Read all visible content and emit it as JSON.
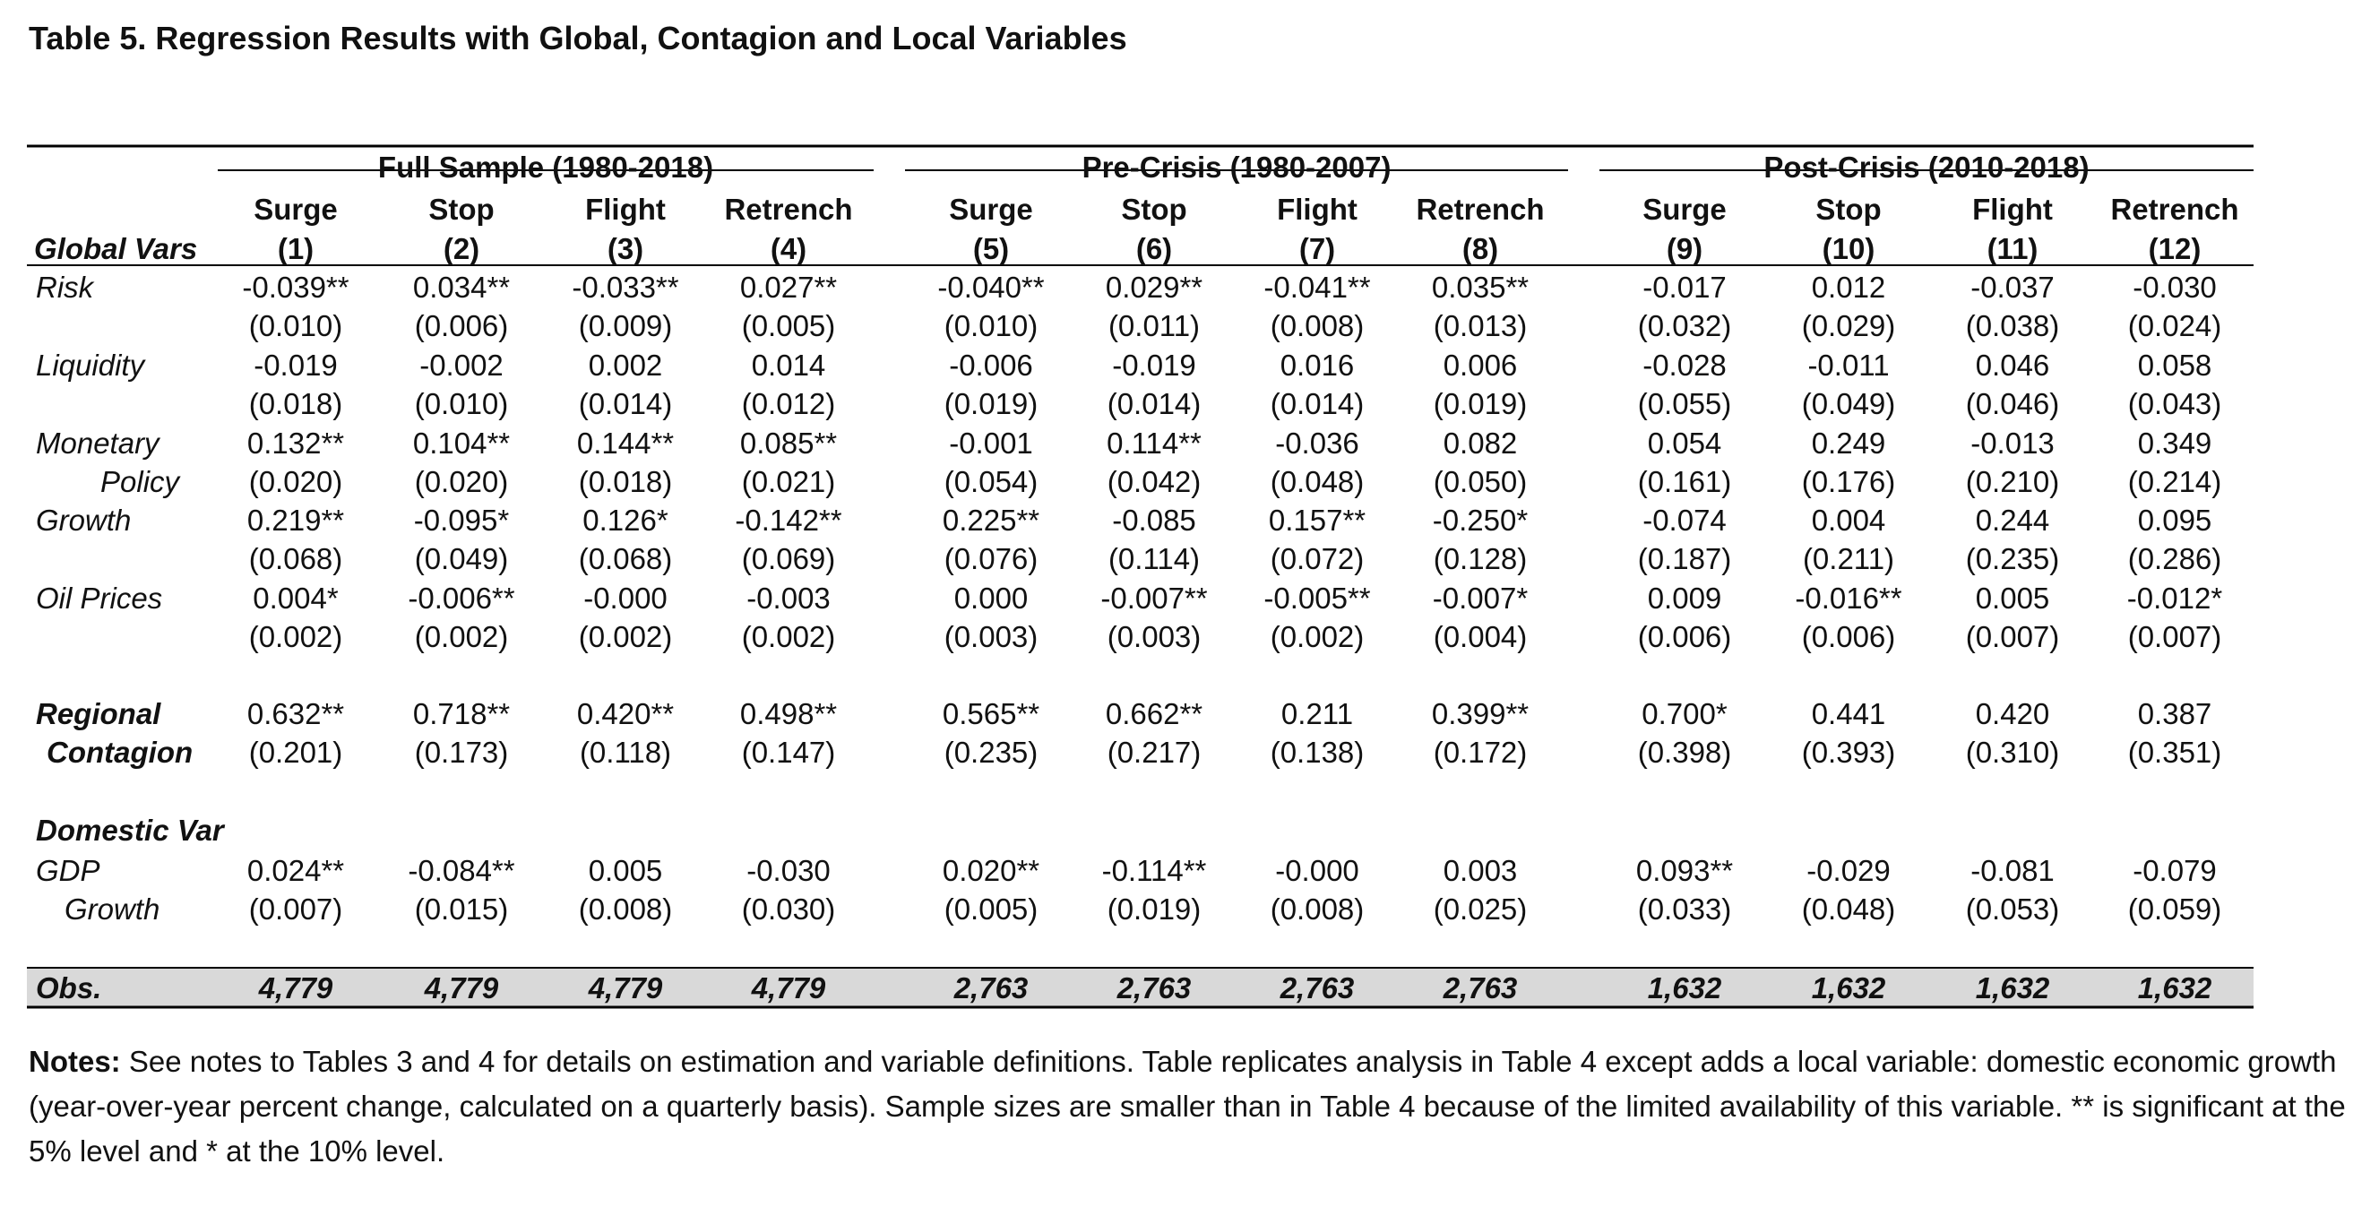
{
  "title": "Table 5. Regression Results with Global, Contagion and Local Variables",
  "groups": [
    "Full Sample (1980-2018)",
    "Pre-Crisis (1980-2007)",
    "Post-Crisis (2010-2018)"
  ],
  "columns": [
    {
      "name": "Surge",
      "num": "(1)"
    },
    {
      "name": "Stop",
      "num": "(2)"
    },
    {
      "name": "Flight",
      "num": "(3)"
    },
    {
      "name": "Retrench",
      "num": "(4)"
    },
    {
      "name": "Surge",
      "num": "(5)"
    },
    {
      "name": "Stop",
      "num": "(6)"
    },
    {
      "name": "Flight",
      "num": "(7)"
    },
    {
      "name": "Retrench",
      "num": "(8)"
    },
    {
      "name": "Surge",
      "num": "(9)"
    },
    {
      "name": "Stop",
      "num": "(10)"
    },
    {
      "name": "Flight",
      "num": "(11)"
    },
    {
      "name": "Retrench",
      "num": "(12)"
    }
  ],
  "header_label": "Global Vars",
  "rows": [
    {
      "label": [
        "Risk",
        ""
      ],
      "style": "italic",
      "coef": [
        "-0.039**",
        "0.034**",
        "-0.033**",
        "0.027**",
        "-0.040**",
        "0.029**",
        "-0.041**",
        "0.035**",
        "-0.017",
        "0.012",
        "-0.037",
        "-0.030"
      ],
      "se": [
        "(0.010)",
        "(0.006)",
        "(0.009)",
        "(0.005)",
        "(0.010)",
        "(0.011)",
        "(0.008)",
        "(0.013)",
        "(0.032)",
        "(0.029)",
        "(0.038)",
        "(0.024)"
      ]
    },
    {
      "label": [
        "Liquidity",
        ""
      ],
      "style": "italic",
      "coef": [
        "-0.019",
        "-0.002",
        "0.002",
        "0.014",
        "-0.006",
        "-0.019",
        "0.016",
        "0.006",
        "-0.028",
        "-0.011",
        "0.046",
        "0.058"
      ],
      "se": [
        "(0.018)",
        "(0.010)",
        "(0.014)",
        "(0.012)",
        "(0.019)",
        "(0.014)",
        "(0.014)",
        "(0.019)",
        "(0.055)",
        "(0.049)",
        "(0.046)",
        "(0.043)"
      ]
    },
    {
      "label": [
        "Monetary",
        "Policy"
      ],
      "style": "italic",
      "coef": [
        "0.132**",
        "0.104**",
        "0.144**",
        "0.085**",
        "-0.001",
        "0.114**",
        "-0.036",
        "0.082",
        "0.054",
        "0.249",
        "-0.013",
        "0.349"
      ],
      "se": [
        "(0.020)",
        "(0.020)",
        "(0.018)",
        "(0.021)",
        "(0.054)",
        "(0.042)",
        "(0.048)",
        "(0.050)",
        "(0.161)",
        "(0.176)",
        "(0.210)",
        "(0.214)"
      ]
    },
    {
      "label": [
        "Growth",
        ""
      ],
      "style": "italic",
      "coef": [
        "0.219**",
        "-0.095*",
        "0.126*",
        "-0.142**",
        "0.225**",
        "-0.085",
        "0.157**",
        "-0.250*",
        "-0.074",
        "0.004",
        "0.244",
        "0.095"
      ],
      "se": [
        "(0.068)",
        "(0.049)",
        "(0.068)",
        "(0.069)",
        "(0.076)",
        "(0.114)",
        "(0.072)",
        "(0.128)",
        "(0.187)",
        "(0.211)",
        "(0.235)",
        "(0.286)"
      ]
    },
    {
      "label": [
        "Oil Prices",
        ""
      ],
      "style": "italic",
      "coef": [
        "0.004*",
        "-0.006**",
        "-0.000",
        "-0.003",
        "0.000",
        "-0.007**",
        "-0.005**",
        "-0.007*",
        "0.009",
        "-0.016**",
        "0.005",
        "-0.012*"
      ],
      "se": [
        "(0.002)",
        "(0.002)",
        "(0.002)",
        "(0.002)",
        "(0.003)",
        "(0.003)",
        "(0.002)",
        "(0.004)",
        "(0.006)",
        "(0.006)",
        "(0.007)",
        "(0.007)"
      ]
    },
    {
      "label": [
        "Regional",
        "Contagion"
      ],
      "style": "bolditalic",
      "coef": [
        "0.632**",
        "0.718**",
        "0.420**",
        "0.498**",
        "0.565**",
        "0.662**",
        "0.211",
        "0.399**",
        "0.700*",
        "0.441",
        "0.420",
        "0.387"
      ],
      "se": [
        "(0.201)",
        "(0.173)",
        "(0.118)",
        "(0.147)",
        "(0.235)",
        "(0.217)",
        "(0.138)",
        "(0.172)",
        "(0.398)",
        "(0.393)",
        "(0.310)",
        "(0.351)"
      ]
    },
    {
      "label": [
        "GDP",
        "Growth"
      ],
      "style": "italic",
      "coef": [
        "0.024**",
        "-0.084**",
        "0.005",
        "-0.030",
        "0.020**",
        "-0.114**",
        "-0.000",
        "0.003",
        "0.093**",
        "-0.029",
        "-0.081",
        "-0.079"
      ],
      "se": [
        "(0.007)",
        "(0.015)",
        "(0.008)",
        "(0.030)",
        "(0.005)",
        "(0.019)",
        "(0.008)",
        "(0.025)",
        "(0.033)",
        "(0.048)",
        "(0.053)",
        "(0.059)"
      ]
    }
  ],
  "domestic_label": "Domestic Var",
  "obs": {
    "label": "Obs.",
    "values": [
      "4,779",
      "4,779",
      "4,779",
      "4,779",
      "2,763",
      "2,763",
      "2,763",
      "2,763",
      "1,632",
      "1,632",
      "1,632",
      "1,632"
    ]
  },
  "notes": {
    "lead": "Notes:",
    "text": " See notes to Tables 3 and 4 for details on estimation and variable definitions. Table replicates analysis in Table 4 except adds a local variable: domestic economic growth (year-over-year percent change, calculated on a quarterly basis). Sample sizes are smaller than in Table 4 because of the limited availability of this variable. ** is significant at the 5% level and * at the 10% level."
  }
}
